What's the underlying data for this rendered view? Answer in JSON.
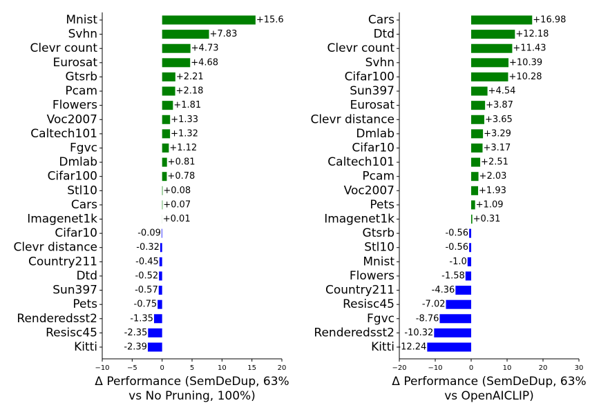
{
  "chart_data": [
    {
      "type": "barh",
      "categories": [
        "Mnist",
        "Svhn",
        "Clevr count",
        "Eurosat",
        "Gtsrb",
        "Pcam",
        "Flowers",
        "Voc2007",
        "Caltech101",
        "Fgvc",
        "Dmlab",
        "Cifar100",
        "Stl10",
        "Cars",
        "Imagenet1k",
        "Cifar10",
        "Clevr distance",
        "Country211",
        "Dtd",
        "Sun397",
        "Pets",
        "Renderedsst2",
        "Resisc45",
        "Kitti"
      ],
      "values": [
        15.6,
        7.83,
        4.73,
        4.68,
        2.21,
        2.18,
        1.81,
        1.33,
        1.32,
        1.12,
        0.81,
        0.78,
        0.08,
        0.07,
        0.01,
        -0.09,
        -0.32,
        -0.45,
        -0.52,
        -0.57,
        -0.75,
        -1.35,
        -2.35,
        -2.39
      ],
      "value_labels": [
        "+15.6",
        "+7.83",
        "+4.73",
        "+4.68",
        "+2.21",
        "+2.18",
        "+1.81",
        "+1.33",
        "+1.32",
        "+1.12",
        "+0.81",
        "+0.78",
        "+0.08",
        "+0.07",
        "+0.01",
        "-0.09",
        "-0.32",
        "-0.45",
        "-0.52",
        "-0.57",
        "-0.75",
        "-1.35",
        "-2.35",
        "-2.39"
      ],
      "positive_color": "#008000",
      "negative_color": "#0000ff",
      "xlim": [
        -10,
        20
      ],
      "xticks": [
        {
          "value": -10,
          "label": "−10"
        },
        {
          "value": -5,
          "label": "−5"
        },
        0,
        5,
        10,
        15,
        20
      ],
      "xlabel": [
        "Δ Performance (SemDeDup, 63%",
        "vs No Pruning, 100%)"
      ]
    },
    {
      "type": "barh",
      "categories": [
        "Cars",
        "Dtd",
        "Clevr count",
        "Svhn",
        "Cifar100",
        "Sun397",
        "Eurosat",
        "Clevr distance",
        "Dmlab",
        "Cifar10",
        "Caltech101",
        "Pcam",
        "Voc2007",
        "Pets",
        "Imagenet1k",
        "Gtsrb",
        "Stl10",
        "Mnist",
        "Flowers",
        "Country211",
        "Resisc45",
        "Fgvc",
        "Renderedsst2",
        "Kitti"
      ],
      "values": [
        16.98,
        12.18,
        11.43,
        10.39,
        10.28,
        4.54,
        3.87,
        3.65,
        3.29,
        3.17,
        2.51,
        2.03,
        1.93,
        1.09,
        0.31,
        -0.56,
        -0.56,
        -1.0,
        -1.58,
        -4.36,
        -7.02,
        -8.76,
        -10.32,
        -12.24
      ],
      "value_labels": [
        "+16.98",
        "+12.18",
        "+11.43",
        "+10.39",
        "+10.28",
        "+4.54",
        "+3.87",
        "+3.65",
        "+3.29",
        "+3.17",
        "+2.51",
        "+2.03",
        "+1.93",
        "+1.09",
        "+0.31",
        "-0.56",
        "-0.56",
        "-1.0",
        "-1.58",
        "-4.36",
        "-7.02",
        "-8.76",
        "-10.32",
        "-12.24"
      ],
      "positive_color": "#008000",
      "negative_color": "#0000ff",
      "xlim": [
        -20,
        30
      ],
      "xticks": [
        {
          "value": -20,
          "label": "−20"
        },
        {
          "value": -10,
          "label": "−10"
        },
        0,
        10,
        20,
        30
      ],
      "xlabel": [
        "Δ Performance (SemDeDup, 63%",
        "vs OpenAICLIP)"
      ]
    }
  ]
}
